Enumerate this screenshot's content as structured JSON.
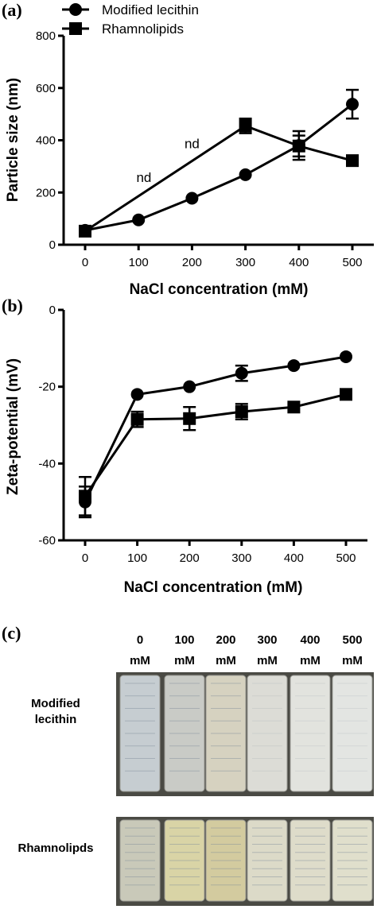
{
  "chart_data": [
    {
      "panel": "(a)",
      "type": "line",
      "xlabel": "NaCl concentration (mM)",
      "ylabel": "Particle size (nm)",
      "xlim": [
        0,
        500
      ],
      "ylim": [
        0,
        800
      ],
      "x_ticks": [
        "0",
        "100",
        "200",
        "300",
        "400",
        "500"
      ],
      "y_ticks": [
        "0",
        "200",
        "400",
        "600",
        "800"
      ],
      "legend": "top-left",
      "series": [
        {
          "name": "Modified lecithin",
          "marker": "circle",
          "x": [
            0,
            100,
            200,
            300,
            400,
            500
          ],
          "y": [
            55,
            95,
            178,
            268,
            380,
            538
          ],
          "err": [
            0,
            0,
            0,
            0,
            55,
            55
          ]
        },
        {
          "name": "Rhamnolipids",
          "marker": "square",
          "x": [
            0,
            300,
            400,
            500
          ],
          "y": [
            52,
            455,
            378,
            322
          ],
          "err": [
            0,
            28,
            40,
            0
          ]
        }
      ],
      "annotations": [
        {
          "text": "nd",
          "x": 200,
          "y": 370
        },
        {
          "text": "nd",
          "x": 110,
          "y": 240
        }
      ]
    },
    {
      "panel": "(b)",
      "type": "line",
      "xlabel": "NaCl concentration (mM)",
      "ylabel": "Zeta-potential (mV)",
      "xlim": [
        0,
        500
      ],
      "ylim": [
        -60,
        0
      ],
      "x_ticks": [
        "0",
        "100",
        "200",
        "300",
        "400",
        "500"
      ],
      "y_ticks": [
        "0",
        "-20",
        "-40",
        "-60"
      ],
      "series": [
        {
          "name": "Modified lecithin",
          "marker": "circle",
          "x": [
            0,
            100,
            200,
            300,
            400,
            500
          ],
          "y": [
            -50,
            -22,
            -20,
            -16.5,
            -14.5,
            -12.2
          ],
          "err": [
            4,
            0,
            0,
            2,
            0,
            0
          ]
        },
        {
          "name": "Rhamnolipids",
          "marker": "square",
          "x": [
            0,
            100,
            200,
            300,
            400,
            500
          ],
          "y": [
            -48.5,
            -28.5,
            -28.3,
            -26.5,
            -25.3,
            -22
          ],
          "err": [
            5,
            2,
            3,
            2,
            0,
            0
          ]
        }
      ]
    }
  ],
  "photo": {
    "panel": "(c)",
    "concentrations": [
      {
        "value": "0",
        "unit": "mM"
      },
      {
        "value": "100",
        "unit": "mM"
      },
      {
        "value": "200",
        "unit": "mM"
      },
      {
        "value": "300",
        "unit": "mM"
      },
      {
        "value": "400",
        "unit": "mM"
      },
      {
        "value": "500",
        "unit": "mM"
      }
    ],
    "rows": [
      {
        "label_lines": [
          "Modified",
          "lecithin"
        ],
        "colors": [
          "#c6cdd1",
          "#c9cbc6",
          "#d6d2c0",
          "#dcdcd6",
          "#e2e3de",
          "#e3e5e2"
        ]
      },
      {
        "label_lines": [
          "Rhamnolipds"
        ],
        "colors": [
          "#c9c9b9",
          "#d9d4a6",
          "#d3cb9f",
          "#dcdac8",
          "#dedcca",
          "#e0dfcc"
        ]
      }
    ]
  }
}
